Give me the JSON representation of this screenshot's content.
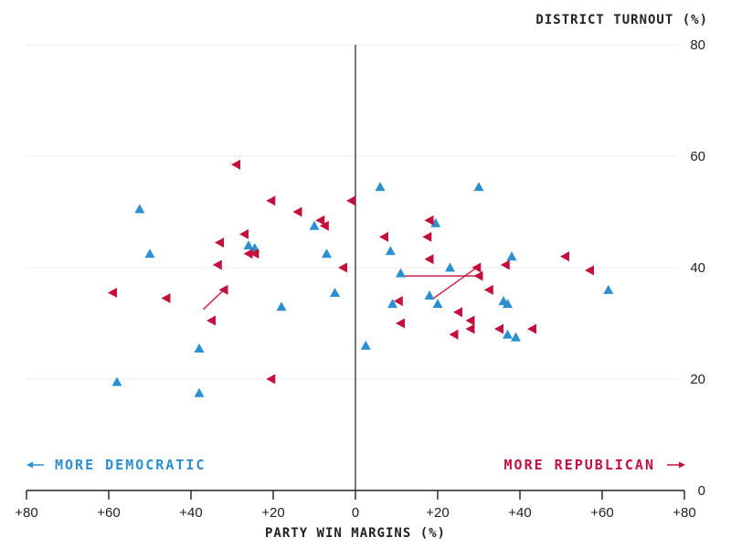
{
  "chart_data": {
    "type": "scatter",
    "title": "",
    "ylabel": "DISTRICT TURNOUT (%)",
    "xlabel": "PARTY WIN MARGINS (%)",
    "xlim": [
      -80,
      80
    ],
    "ylim": [
      0,
      80
    ],
    "x_ticks": [
      {
        "value": -80,
        "label": "+80"
      },
      {
        "value": -60,
        "label": "+60"
      },
      {
        "value": -40,
        "label": "+40"
      },
      {
        "value": -20,
        "label": "+20"
      },
      {
        "value": 0,
        "label": "0"
      },
      {
        "value": 20,
        "label": "+20"
      },
      {
        "value": 40,
        "label": "+40"
      },
      {
        "value": 60,
        "label": "+60"
      },
      {
        "value": 80,
        "label": "+80"
      }
    ],
    "y_ticks": [
      {
        "value": 0,
        "label": "0"
      },
      {
        "value": 20,
        "label": "20"
      },
      {
        "value": 40,
        "label": "40"
      },
      {
        "value": 60,
        "label": "60"
      },
      {
        "value": 80,
        "label": "80"
      }
    ],
    "annotations": {
      "left": "MORE DEMOCRATIC",
      "right": "MORE REPUBLICAN"
    },
    "colors": {
      "democratic": "#2b8fd0",
      "republican": "#c4103d"
    },
    "series": [
      {
        "name": "Democratic",
        "marker": "triangle-up",
        "points": [
          {
            "x": -58,
            "y": 19.5
          },
          {
            "x": -52.5,
            "y": 50.5
          },
          {
            "x": -50,
            "y": 42.5
          },
          {
            "x": -38,
            "y": 25.5
          },
          {
            "x": -38,
            "y": 17.5
          },
          {
            "x": -26,
            "y": 44
          },
          {
            "x": -24.5,
            "y": 43.5
          },
          {
            "x": -18,
            "y": 33
          },
          {
            "x": -10,
            "y": 47.5
          },
          {
            "x": -7,
            "y": 42.5
          },
          {
            "x": -5,
            "y": 35.5
          },
          {
            "x": 2.5,
            "y": 26
          },
          {
            "x": 6,
            "y": 54.5
          },
          {
            "x": 8.5,
            "y": 43
          },
          {
            "x": 9,
            "y": 33.5
          },
          {
            "x": 11,
            "y": 39
          },
          {
            "x": 18,
            "y": 35
          },
          {
            "x": 19.5,
            "y": 48
          },
          {
            "x": 20,
            "y": 33.5
          },
          {
            "x": 23,
            "y": 40
          },
          {
            "x": 30,
            "y": 54.5
          },
          {
            "x": 36,
            "y": 34
          },
          {
            "x": 37,
            "y": 33.5
          },
          {
            "x": 37,
            "y": 28
          },
          {
            "x": 38,
            "y": 42
          },
          {
            "x": 39,
            "y": 27.5
          },
          {
            "x": 61.5,
            "y": 36
          }
        ]
      },
      {
        "name": "Republican",
        "marker": "triangle-left",
        "points": [
          {
            "x": -59,
            "y": 35.5
          },
          {
            "x": -46,
            "y": 34.5
          },
          {
            "x": -35,
            "y": 30.5
          },
          {
            "x": -33.5,
            "y": 40.5
          },
          {
            "x": -33,
            "y": 44.5
          },
          {
            "x": -32,
            "y": 36
          },
          {
            "x": -29,
            "y": 58.5
          },
          {
            "x": -27,
            "y": 46
          },
          {
            "x": -26,
            "y": 42.5
          },
          {
            "x": -24.5,
            "y": 42.5
          },
          {
            "x": -20.5,
            "y": 52
          },
          {
            "x": -20.5,
            "y": 20
          },
          {
            "x": -14,
            "y": 50
          },
          {
            "x": -8.5,
            "y": 48.5
          },
          {
            "x": -7.5,
            "y": 47.5
          },
          {
            "x": -3,
            "y": 40
          },
          {
            "x": -1,
            "y": 52
          },
          {
            "x": 7,
            "y": 45.5
          },
          {
            "x": 10.5,
            "y": 34
          },
          {
            "x": 11,
            "y": 30
          },
          {
            "x": 17.5,
            "y": 45.5
          },
          {
            "x": 18,
            "y": 41.5
          },
          {
            "x": 18,
            "y": 48.5
          },
          {
            "x": 24,
            "y": 28
          },
          {
            "x": 25,
            "y": 32
          },
          {
            "x": 28,
            "y": 30.5
          },
          {
            "x": 28,
            "y": 29
          },
          {
            "x": 29.5,
            "y": 40
          },
          {
            "x": 30,
            "y": 38.5
          },
          {
            "x": 32.5,
            "y": 36
          },
          {
            "x": 35,
            "y": 29
          },
          {
            "x": 36.5,
            "y": 40.5
          },
          {
            "x": 43,
            "y": 29
          },
          {
            "x": 51,
            "y": 42
          },
          {
            "x": 57,
            "y": 39.5
          }
        ]
      }
    ],
    "shift_lines": [
      {
        "party": "Republican",
        "from": [
          11,
          38.5
        ],
        "to": [
          30,
          38.5
        ]
      },
      {
        "party": "Republican",
        "from": [
          19,
          34.5
        ],
        "to": [
          29.5,
          40
        ]
      },
      {
        "party": "Republican",
        "from": [
          -37,
          32.5
        ],
        "to": [
          -32,
          36
        ]
      }
    ]
  }
}
